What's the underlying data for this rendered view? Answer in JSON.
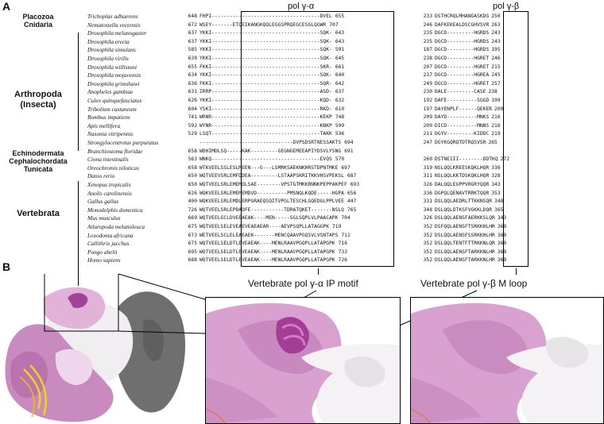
{
  "panel_a": {
    "label": "A",
    "col_gamma_alpha": "pol γ-α",
    "col_gamma_beta": "pol γ-β",
    "groups": [
      {
        "label": "Placozoa"
      },
      {
        "label": "Cnidaria"
      },
      {
        "label": "Arthropoda\n(Insecta)"
      },
      {
        "label": "Echinodermata"
      },
      {
        "label": "Cephalochordata"
      },
      {
        "label": "Tunicata"
      },
      {
        "label": "Vertebrata"
      }
    ],
    "rows": [
      {
        "species": "Trichoplax adhaerens",
        "s1": "648",
        "seq1": "FHPI------------------------------------DVEL",
        "e1": "655",
        "s2": "233",
        "seq2": "DSTHCRQLMHANGASKDG",
        "e2": "250"
      },
      {
        "species": "Nematostella vectensis",
        "s1": "672",
        "seq1": "WSEY-------ETQEIKANGKQQLEGGSPRQEGCESGLQGWR",
        "e1": "707",
        "s2": "246",
        "seq2": "DAFKEKEALDSCGHVSVR",
        "e2": "263"
      },
      {
        "species": "Drosophila melanogaster",
        "s1": "637",
        "seq1": "YKKI------------------------------------SQK-",
        "e1": "643",
        "s2": "235",
        "seq2": "DGCD---------HGRDS",
        "e2": "243"
      },
      {
        "species": "Drosophila erecta",
        "s1": "637",
        "seq1": "YKKI------------------------------------SQK-",
        "e1": "643",
        "s2": "235",
        "seq2": "DGCD---------HGRDS",
        "e2": "243"
      },
      {
        "species": "Drosophila simulans",
        "s1": "585",
        "seq1": "YKKI------------------------------------SQK-",
        "e1": "591",
        "s2": "187",
        "seq2": "DGCD---------HGRDS",
        "e2": "195"
      },
      {
        "species": "Drosophila virilis",
        "s1": "639",
        "seq1": "YKKI------------------------------------SQK-",
        "e1": "645",
        "s2": "238",
        "seq2": "DGCD---------HGRET",
        "e2": "246"
      },
      {
        "species": "Drosophila willistoni",
        "s1": "655",
        "seq1": "FKKI------------------------------------SKR-",
        "e1": "661",
        "s2": "207",
        "seq2": "DGCD---------HGRET",
        "e2": "215"
      },
      {
        "species": "Drosophila mojavensis",
        "s1": "634",
        "seq1": "YKKI------------------------------------SQK-",
        "e1": "640",
        "s2": "237",
        "seq2": "DGCD---------HGREA",
        "e2": "245"
      },
      {
        "species": "Drosophila grimshawi",
        "s1": "636",
        "seq1": "FKKI------------------------------------SQR-",
        "e1": "642",
        "s2": "249",
        "seq2": "DGCD---------HGRET",
        "e2": "257"
      },
      {
        "species": "Anopheles gambiae",
        "s1": "631",
        "seq1": "IRRP------------------------------------ASD-",
        "e1": "637",
        "s2": "230",
        "seq2": "DALE---------CASE",
        "e2": "238"
      },
      {
        "species": "Culex quinquefasciatus",
        "s1": "626",
        "seq1": "YKKI------------------------------------KQD-",
        "e1": "632",
        "s2": "192",
        "seq2": "DAFE----------SGGD",
        "e2": "199"
      },
      {
        "species": "Tribolium castaneum",
        "s1": "604",
        "seq1": "YSKI------------------------------------RKD-",
        "e1": "610",
        "s2": "197",
        "seq2": "DAYENPLF------QEKER",
        "e2": "209"
      },
      {
        "species": "Bombus impatiens",
        "s1": "741",
        "seq1": "WRNR------------------------------------KEKP",
        "e1": "748",
        "s2": "209",
        "seq2": "DAYD----------MNKS",
        "e2": "216"
      },
      {
        "species": "Apis mellifera",
        "s1": "592",
        "seq1": "WYNR------------------------------------KNKP",
        "e1": "599",
        "s2": "209",
        "seq2": "DICD----------MNNS",
        "e2": "216"
      },
      {
        "species": "Nasonia vitripennis",
        "s1": "529",
        "seq1": "LSQT------------------------------------TAKK",
        "e1": "536",
        "s2": "211",
        "seq2": "DGYV---------KIDDC",
        "e2": "219"
      },
      {
        "species": "Strongylocentrotus purpuratus",
        "s1": "",
        "seq1": "-------------------------------DVPSDSRTNESSAKTS",
        "e1": "694",
        "s2": "247",
        "seq2": "DGYKGQRQTDTRQSVSR",
        "e2": "265"
      },
      {
        "species": "Branchiostoma floridae",
        "s1": "658",
        "seq1": "WDHIMDLSQ-----KAK---------GEGNGEMEEAPIYDSVLYSNG",
        "e1": "691",
        "s2": "",
        "seq2": "",
        "e2": ""
      },
      {
        "species": "Ciona intestinalis",
        "s1": "563",
        "seq1": "WNKQ------------------------------------EVQS",
        "e1": "570",
        "s2": "260",
        "seq2": "DSTNEIII--------DDTKQ",
        "e2": "272"
      },
      {
        "species": "Oreochromis niloticus",
        "s1": "658",
        "seq1": "WTKVEELSSLESLMEEN---G---LSMRKSAEKNKHRSTDPNTMKE",
        "e1": "697",
        "s2": "319",
        "seq2": "NSLQQLKREESKQKLHQR",
        "e2": "336"
      },
      {
        "species": "Danio rerio",
        "s1": "650",
        "seq1": "WQTVEEVSRLEMFDDEA---------LSTAAPSKRITKKVHSVPEKSL",
        "e1": "687",
        "s2": "311",
        "seq2": "NSLQQLKKTDSKQKLHQR",
        "e2": "328"
      },
      {
        "species": "Xenopus tropicalis",
        "s1": "650",
        "seq1": "WQTVEELSRLEMEMDLSAE--------VPSTGTMKKRNNKPEPPAKPEF",
        "e1": "693",
        "s2": "326",
        "seq2": "DALQQLEGPPVRGRYQQR",
        "e2": "343"
      },
      {
        "species": "Anolis carolinensis",
        "s1": "626",
        "seq1": "WQKVEELSRLEMEMEMDVD----------PMSNQLKQDE-----HGPA",
        "e1": "656",
        "s2": "336",
        "seq2": "DGPQLQENAVTRRKTQQR",
        "e2": "353"
      },
      {
        "species": "Gallus gallus",
        "s1": "400",
        "seq1": "WQKVEELSRLEMDLERPGRAEQSQITVPGLTESCHLGQEDGLPPLVEE",
        "e1": "447",
        "s2": "331",
        "seq2": "DSLQQLAEDRLTTKKNSQR",
        "e2": "348"
      },
      {
        "species": "Monodelphis domestica",
        "s1": "726",
        "seq1": "WQTVEELSRLEPDADFE-----------TDRATQKET-------NSLQ",
        "e1": "765",
        "s2": "348",
        "seq2": "DSLQQLDTKSFVGKKLDQR",
        "e2": "365"
      },
      {
        "species": "Mus musculus",
        "s1": "669",
        "seq1": "WQTVEELGCLDVEEAEAK----MEN-----SGLSQPLVLPAACAPK",
        "e1": "704",
        "s2": "326",
        "seq2": "DSLQQLAENSFAERKKSLQR",
        "e2": "343"
      },
      {
        "species": "Ailuropoda melanoleuca",
        "s1": "675",
        "seq1": "WQTVEELSELEVEAEVEAEAEAR----AEVPSQPLLATAGGPK",
        "e1": "719",
        "s2": "352",
        "seq2": "DSFQQLAENSFTSRKKHLHR",
        "e2": "369"
      },
      {
        "species": "Loxodonta africana",
        "s1": "673",
        "seq1": "WETVEELSCLELEAEAEK-------MENCQAAVPGQSVLVSNTAPS",
        "e1": "711",
        "s2": "352",
        "seq2": "DSLQQLAENSFSSRKKHLHR",
        "e2": "369"
      },
      {
        "species": "Callithrix jacchus",
        "s1": "675",
        "seq1": "WQTVEELSELDTLEVEAEAK----MENLRAAVPGQPLLATAPGPK",
        "e1": "716",
        "s2": "352",
        "seq2": "DSLQQLTENTFTTRKKNLQR",
        "e2": "369"
      },
      {
        "species": "Pongo abelii",
        "s1": "695",
        "seq1": "WQTVEELSELDTLEVEAEAK----MENLRAAVPGQPLLATAPGPK",
        "e1": "733",
        "s2": "352",
        "seq2": "DSLQQLAENSFTARKKNLHR",
        "e2": "369"
      },
      {
        "species": "Homo sapiens",
        "s1": "688",
        "seq1": "WQTVEELSELDTLEVEAEAK----MENLRAAVPGQPLLATAPGPK",
        "e1": "726",
        "s2": "352",
        "seq2": "DSLQQLAENSFTARKKNLHR",
        "e2": "369"
      }
    ]
  },
  "panel_b": {
    "label": "B",
    "caption_ip": "Vertebrate pol γ-α IP motif",
    "caption_m": "Vertebrate pol γ-β M loop"
  },
  "colors": {
    "pink_light": "#e7b7de",
    "pink": "#d58fc9",
    "magenta": "#b0509f",
    "grey_dark": "#6f6f6f",
    "white_surface": "#eeeeee",
    "dna_yellow": "#f2d21c"
  }
}
